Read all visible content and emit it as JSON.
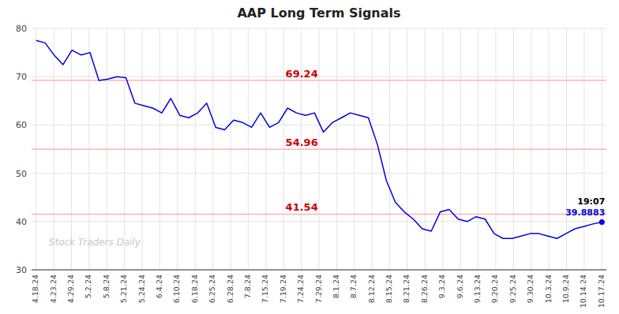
{
  "chart_data": {
    "type": "line",
    "title": "AAP Long Term Signals",
    "x": [
      0,
      1,
      2,
      3,
      4,
      5,
      6,
      7,
      8,
      9,
      10,
      11,
      12,
      13,
      14,
      15,
      16,
      17,
      18,
      19,
      20,
      21,
      22,
      23,
      24,
      25,
      26,
      27,
      28,
      29,
      30,
      31,
      32,
      33,
      34,
      35,
      36,
      37,
      38,
      39,
      40,
      41,
      42,
      43,
      44,
      45,
      46,
      47,
      48,
      49,
      50,
      51,
      52,
      53,
      54,
      55,
      56,
      57,
      58,
      59,
      60,
      61,
      62,
      63
    ],
    "values": [
      77.5,
      77.0,
      74.5,
      72.5,
      75.5,
      74.5,
      75.0,
      69.2,
      69.5,
      70.0,
      69.8,
      64.5,
      64.0,
      63.5,
      62.5,
      65.5,
      62.0,
      61.5,
      62.5,
      64.5,
      59.5,
      59.0,
      61.0,
      60.5,
      59.5,
      62.5,
      59.5,
      60.5,
      63.5,
      62.5,
      62.0,
      62.5,
      58.5,
      60.5,
      61.5,
      62.5,
      62.0,
      61.5,
      56.0,
      48.5,
      44.0,
      42.0,
      40.5,
      38.5,
      38.0,
      42.0,
      42.5,
      40.5,
      40.0,
      41.0,
      40.5,
      37.5,
      36.5,
      36.5,
      37.0,
      37.5,
      37.5,
      37.0,
      36.5,
      37.5,
      38.5,
      39.0,
      39.5,
      39.8883
    ],
    "color": "#0000dd",
    "hlines": [
      69.24,
      54.96,
      41.54
    ],
    "annotations": [
      "19:07",
      "Stock Traders Daily"
    ],
    "xlim": [
      -0.5,
      63.5
    ],
    "xticks": [
      {
        "value": 0,
        "label": "4.18.24"
      },
      {
        "value": 1.96875,
        "label": "4.23.24"
      },
      {
        "value": 3.9375,
        "label": "4.29.24"
      },
      {
        "value": 5.90625,
        "label": "5.2.24"
      },
      {
        "value": 7.875,
        "label": "5.8.24"
      },
      {
        "value": 9.84375,
        "label": "5.21.24"
      },
      {
        "value": 11.8125,
        "label": "5.24.24"
      },
      {
        "value": 13.78125,
        "label": "6.4.24"
      },
      {
        "value": 15.75,
        "label": "6.10.24"
      },
      {
        "value": 17.71875,
        "label": "6.18.24"
      },
      {
        "value": 19.6875,
        "label": "6.25.24"
      },
      {
        "value": 21.65625,
        "label": "6.28.24"
      },
      {
        "value": 23.625,
        "label": "7.8.24"
      },
      {
        "value": 25.59375,
        "label": "7.15.24"
      },
      {
        "value": 27.5625,
        "label": "7.19.24"
      },
      {
        "value": 29.53125,
        "label": "7.24.24"
      },
      {
        "value": 31.5,
        "label": "7.29.24"
      },
      {
        "value": 33.46875,
        "label": "8.1.24"
      },
      {
        "value": 35.4375,
        "label": "8.7.24"
      },
      {
        "value": 37.40625,
        "label": "8.12.24"
      },
      {
        "value": 39.375,
        "label": "8.15.24"
      },
      {
        "value": 41.34375,
        "label": "8.21.24"
      },
      {
        "value": 43.3125,
        "label": "8.26.24"
      },
      {
        "value": 45.28125,
        "label": "9.3.24"
      },
      {
        "value": 47.25,
        "label": "9.6.24"
      },
      {
        "value": 49.21875,
        "label": "9.13.24"
      },
      {
        "value": 51.1875,
        "label": "9.20.24"
      },
      {
        "value": 53.15625,
        "label": "9.25.24"
      },
      {
        "value": 55.125,
        "label": "9.30.24"
      },
      {
        "value": 57.09375,
        "label": "10.3.24"
      },
      {
        "value": 59.0625,
        "label": "10.9.24"
      },
      {
        "value": 61.03125,
        "label": "10.14.24"
      },
      {
        "value": 63,
        "label": "10.17.24"
      }
    ],
    "ylim": [
      30,
      80
    ],
    "yticks": [
      30,
      40,
      50,
      60,
      70,
      80
    ],
    "grid": true
  }
}
